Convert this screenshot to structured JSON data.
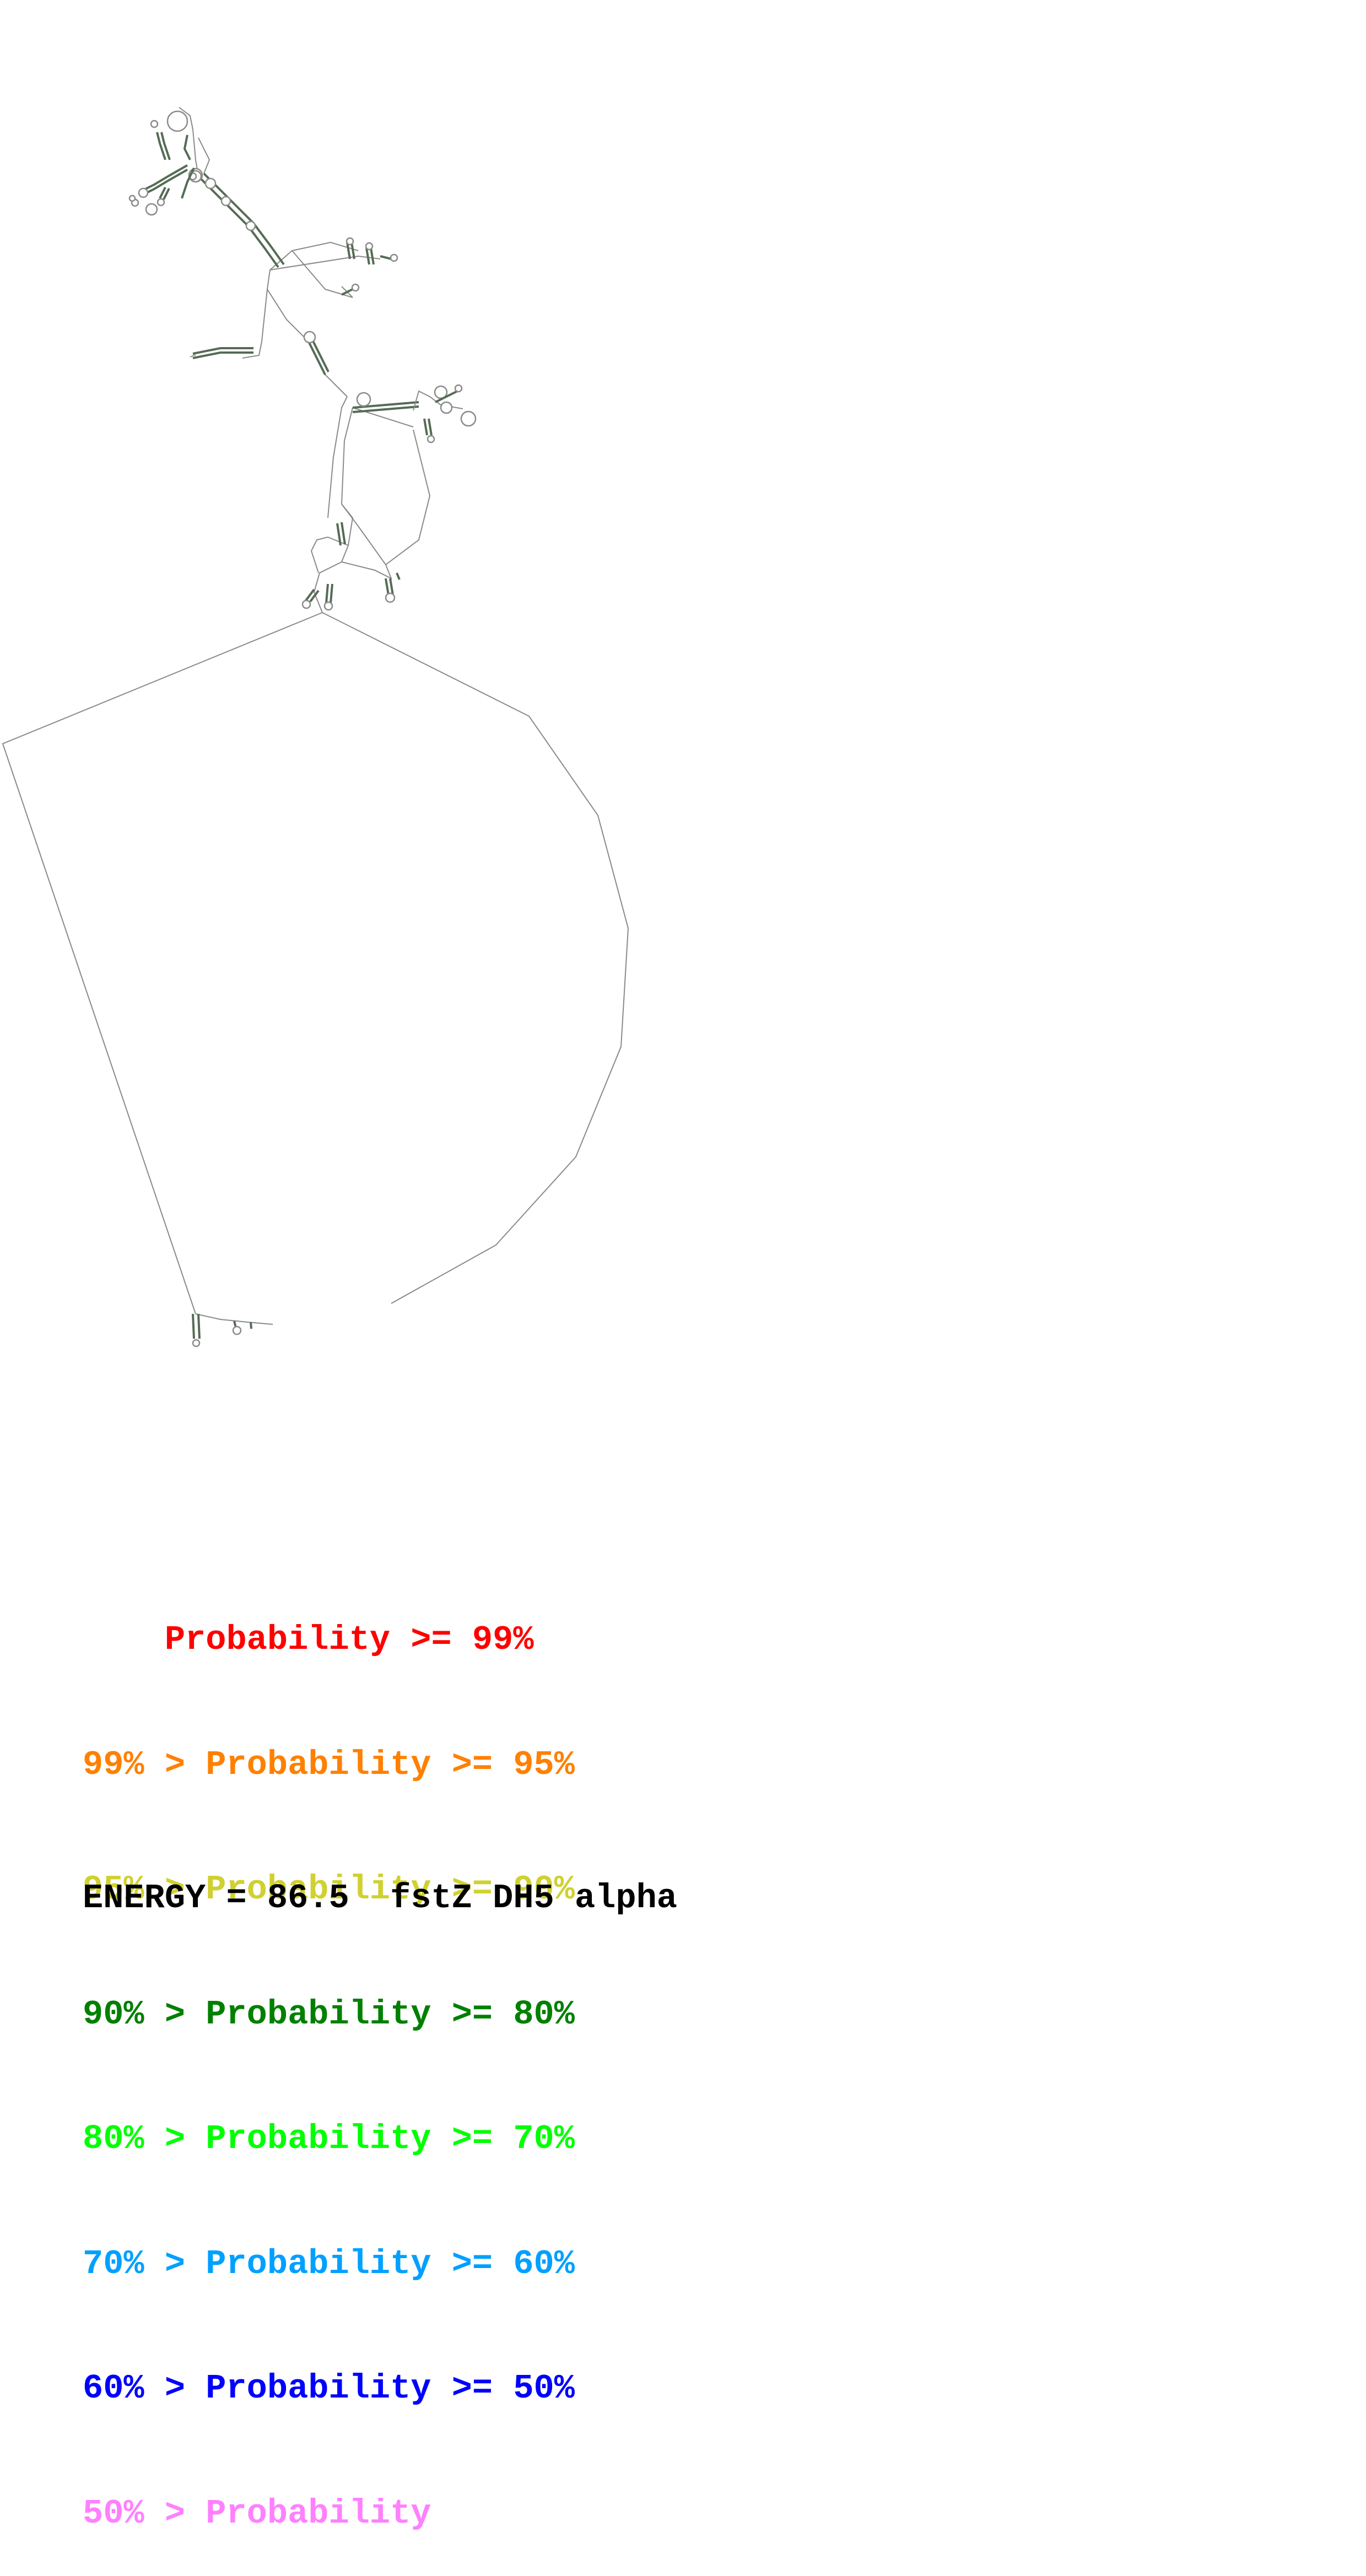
{
  "legend": {
    "rows": [
      {
        "prefix": "    ",
        "text": "Probability >= 99%",
        "color": "#ff0000"
      },
      {
        "prefix": "99% > ",
        "text": "Probability >= 95%",
        "color": "#ff8000"
      },
      {
        "prefix": "95% > ",
        "text": "Probability >= 90%",
        "color": "#d0d030"
      },
      {
        "prefix": "90% > ",
        "text": "Probability >= 80%",
        "color": "#008000"
      },
      {
        "prefix": "80% > ",
        "text": "Probability >= 70%",
        "color": "#00ff00"
      },
      {
        "prefix": "70% > ",
        "text": "Probability >= 60%",
        "color": "#00a0ff"
      },
      {
        "prefix": "60% > ",
        "text": "Probability >= 50%",
        "color": "#0000ff"
      },
      {
        "prefix": "50% > ",
        "text": "Probability",
        "color": "#ff80ff"
      }
    ]
  },
  "footer": {
    "energy_label": "ENERGY = 86.5",
    "sequence_name": "fstZ DH5 alpha"
  },
  "structure": {
    "backbone_color": "#8a8a8a",
    "stem_color": "#556b55"
  }
}
